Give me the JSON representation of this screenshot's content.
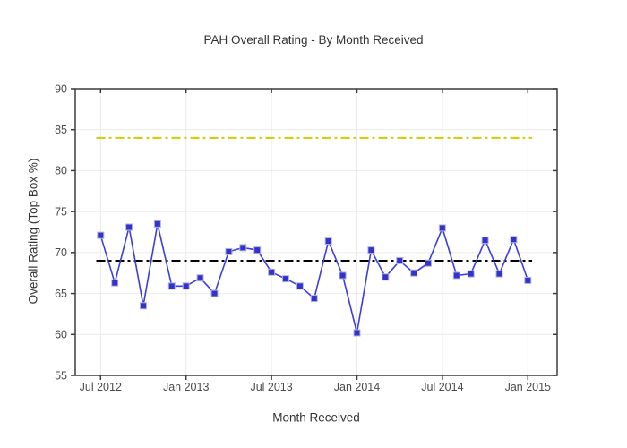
{
  "page": {
    "title": "PAH Overall Rating - By Month Received"
  },
  "colors": {
    "background": "#ffffff",
    "line": "#3d3de0",
    "marker_fill": "#3232cd",
    "marker_edge": "#b4b4d8",
    "target_line": "#cccc00",
    "mean_line": "#000000",
    "grid": "#ebebeb",
    "axis": "#3b3b3b",
    "tick_text": "#4b4b4b"
  },
  "chart_data": {
    "type": "line",
    "title": "PAH Overall Rating - By Month Received",
    "xlabel": "Month Received",
    "ylabel": "Overall Rating (Top Box %)",
    "x_categories": [
      "Jul 2012",
      "Aug 2012",
      "Sep 2012",
      "Oct 2012",
      "Nov 2012",
      "Dec 2012",
      "Jan 2013",
      "Feb 2013",
      "Mar 2013",
      "Apr 2013",
      "May 2013",
      "Jun 2013",
      "Jul 2013",
      "Aug 2013",
      "Sep 2013",
      "Oct 2013",
      "Nov 2013",
      "Dec 2013",
      "Jan 2014",
      "Feb 2014",
      "Mar 2014",
      "Apr 2014",
      "May 2014",
      "Jun 2014",
      "Jul 2014",
      "Aug 2014",
      "Sep 2014",
      "Oct 2014",
      "Nov 2014",
      "Dec 2014",
      "Jan 2015"
    ],
    "series": [
      {
        "name": "Overall Rating (Top Box %)",
        "marker": "square",
        "values": [
          72.1,
          66.3,
          73.1,
          63.5,
          73.5,
          65.9,
          65.9,
          66.9,
          65.0,
          70.1,
          70.6,
          70.3,
          67.6,
          66.8,
          65.9,
          64.4,
          71.4,
          67.2,
          60.2,
          70.3,
          67.0,
          69.0,
          67.5,
          68.7,
          73.0,
          67.2,
          67.4,
          71.5,
          67.4,
          71.6,
          66.6
        ]
      }
    ],
    "reference_lines": [
      {
        "name": "target-line",
        "value": 84,
        "style": "dash-dot"
      },
      {
        "name": "mean-line",
        "value": 69,
        "style": "dash-dot"
      }
    ],
    "y_axis": {
      "min": 55,
      "max": 90,
      "ticks": [
        90,
        85,
        80,
        75,
        70,
        65,
        60,
        55
      ]
    },
    "x_axis": {
      "tick_labels": [
        "Jul 2012",
        "Jan 2013",
        "Jul 2013",
        "Jan 2014",
        "Jul 2014",
        "Jan 2015"
      ],
      "tick_indices": [
        0,
        6,
        12,
        18,
        24,
        30
      ]
    },
    "grid": true,
    "legend_position": "none"
  }
}
